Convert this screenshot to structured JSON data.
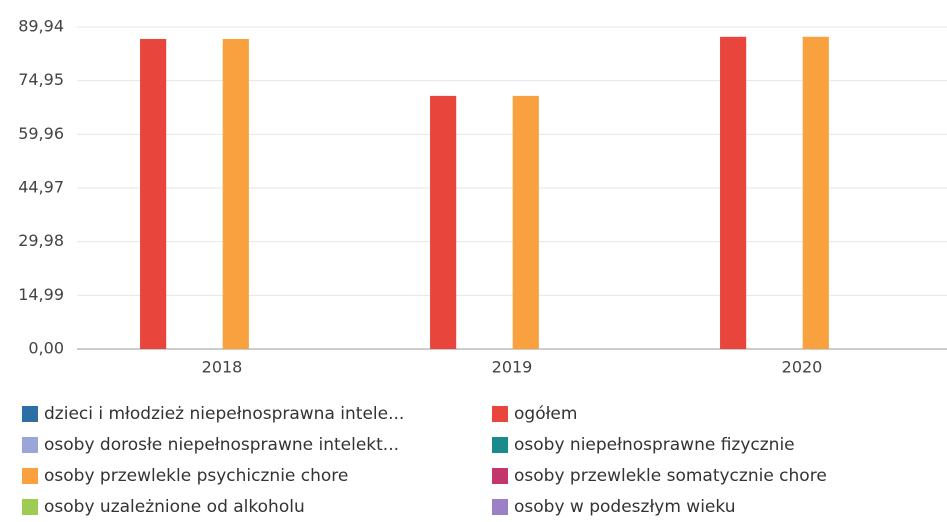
{
  "chart_data": {
    "type": "bar",
    "categories": [
      "2018",
      "2019",
      "2020"
    ],
    "ylim": [
      0,
      89.94
    ],
    "yticks": [
      {
        "value": 0,
        "label": "0,00"
      },
      {
        "value": 14.99,
        "label": "14,99"
      },
      {
        "value": 29.98,
        "label": "29,98"
      },
      {
        "value": 44.97,
        "label": "44,97"
      },
      {
        "value": 59.96,
        "label": "59,96"
      },
      {
        "value": 74.95,
        "label": "74,95"
      },
      {
        "value": 89.94,
        "label": "89,94"
      }
    ],
    "grid": true,
    "series": [
      {
        "name": "dzieci i młodzież niepełnosprawna intele...",
        "color": "#2e6ea6",
        "values": [
          0,
          0,
          0
        ]
      },
      {
        "name": "ogółem",
        "color": "#e8453c",
        "values": [
          86.6,
          70.7,
          87.2
        ]
      },
      {
        "name": "osoby dorosłe niepełnosprawne intelekt...",
        "color": "#9aa5d9",
        "values": [
          0,
          0,
          0
        ]
      },
      {
        "name": "osoby niepełnosprawne fizycznie",
        "color": "#1a8a8a",
        "values": [
          0,
          0,
          0
        ]
      },
      {
        "name": "osoby przewlekle psychicznie chore",
        "color": "#f9a03f",
        "values": [
          86.6,
          70.7,
          87.2
        ]
      },
      {
        "name": "osoby przewlekle somatycznie chore",
        "color": "#c2366b",
        "values": [
          0,
          0,
          0
        ]
      },
      {
        "name": "osoby uzależnione od alkoholu",
        "color": "#9ccc50",
        "values": [
          0,
          0,
          0
        ]
      },
      {
        "name": "osoby w podeszłym wieku",
        "color": "#9b7fc7",
        "values": [
          0,
          0,
          0
        ]
      }
    ]
  }
}
